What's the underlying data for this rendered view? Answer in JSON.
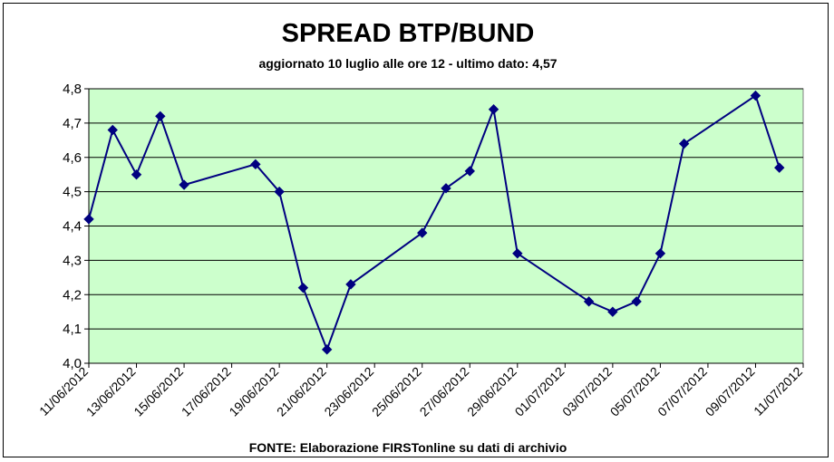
{
  "chart_data": {
    "type": "line",
    "title": "SPREAD BTP/BUND",
    "subtitle": "aggiornato 10 luglio alle ore 12 - ultimo dato: 4,57",
    "source": "FONTE: Elaborazione FIRSTonline su dati di archivio",
    "xlabel": "",
    "ylabel": "",
    "ylim": [
      4.0,
      4.8
    ],
    "y_ticks": [
      "4,0",
      "4,1",
      "4,2",
      "4,3",
      "4,4",
      "4,5",
      "4,6",
      "4,7",
      "4,8"
    ],
    "x_ticks": [
      "11/06/2012",
      "13/06/2012",
      "15/06/2012",
      "17/06/2012",
      "19/06/2012",
      "21/06/2012",
      "23/06/2012",
      "25/06/2012",
      "27/06/2012",
      "29/06/2012",
      "01/07/2012",
      "03/07/2012",
      "05/07/2012",
      "07/07/2012",
      "09/07/2012",
      "11/07/2012"
    ],
    "x_range": [
      "2012-06-11",
      "2012-07-11"
    ],
    "grid": true,
    "plot_background": "#CCFFCC",
    "line_color": "#000080",
    "marker": "diamond",
    "series": [
      {
        "x": [
          "2012-06-11",
          "2012-06-12",
          "2012-06-13",
          "2012-06-14",
          "2012-06-15",
          "2012-06-18",
          "2012-06-19",
          "2012-06-20",
          "2012-06-21",
          "2012-06-22",
          "2012-06-25",
          "2012-06-26",
          "2012-06-27",
          "2012-06-28",
          "2012-06-29",
          "2012-07-02",
          "2012-07-03",
          "2012-07-04",
          "2012-07-05",
          "2012-07-06",
          "2012-07-09",
          "2012-07-10"
        ],
        "values": [
          4.42,
          4.68,
          4.55,
          4.72,
          4.52,
          4.58,
          4.5,
          4.22,
          4.04,
          4.23,
          4.38,
          4.51,
          4.56,
          4.74,
          4.32,
          4.18,
          4.15,
          4.18,
          4.32,
          4.64,
          4.78,
          4.57
        ]
      }
    ]
  }
}
